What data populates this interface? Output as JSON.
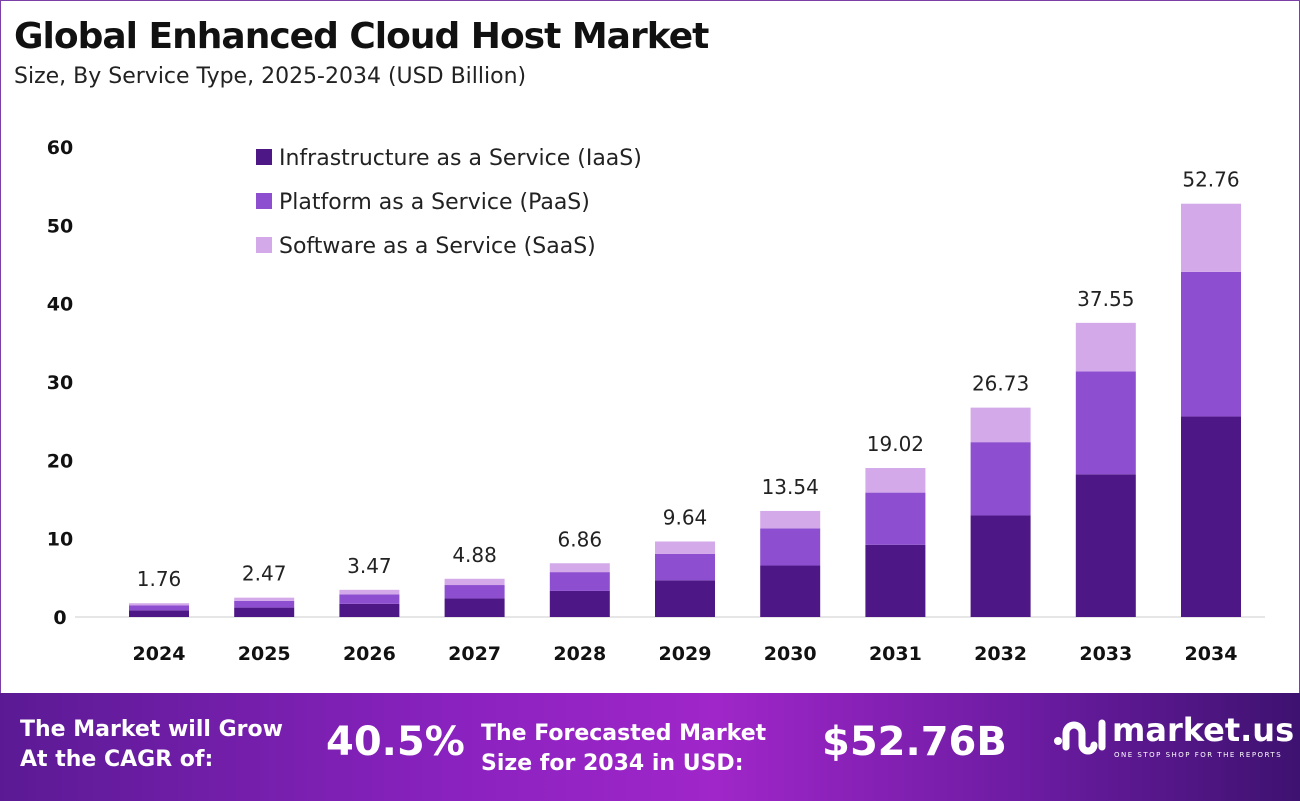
{
  "title": "Global Enhanced Cloud Host Market",
  "subtitle": "Size, By Service Type, 2025-2034 (USD Billion)",
  "chart_data": {
    "type": "stacked-bar",
    "categories": [
      "2024",
      "2025",
      "2026",
      "2027",
      "2028",
      "2029",
      "2030",
      "2031",
      "2032",
      "2033",
      "2034"
    ],
    "series": [
      {
        "name": "Infrastructure as a Service (IaaS)",
        "color": "#4e1786",
        "values": [
          0.85,
          1.2,
          1.68,
          2.37,
          3.33,
          4.68,
          6.57,
          9.22,
          12.96,
          18.21,
          25.59
        ]
      },
      {
        "name": "Platform as a Service (PaaS)",
        "color": "#8d4ecf",
        "values": [
          0.62,
          0.86,
          1.21,
          1.71,
          2.4,
          3.37,
          4.74,
          6.66,
          9.36,
          13.14,
          18.47
        ]
      },
      {
        "name": "Software as a Service (SaaS)",
        "color": "#d3a9ea",
        "values": [
          0.29,
          0.41,
          0.58,
          0.8,
          1.13,
          1.59,
          2.23,
          3.14,
          4.41,
          6.2,
          8.7
        ]
      }
    ],
    "totals": [
      "1.76",
      "2.47",
      "3.47",
      "4.88",
      "6.86",
      "9.64",
      "13.54",
      "19.02",
      "26.73",
      "37.55",
      "52.76"
    ],
    "yticks": [
      "0",
      "10",
      "20",
      "30",
      "40",
      "50",
      "60"
    ],
    "ylim": [
      0,
      60
    ],
    "grid": false,
    "legend": "top-left"
  },
  "footer": {
    "cagr_label": [
      "The Market will Grow",
      "At the CAGR of:"
    ],
    "cagr_value": "40.5%",
    "forecast_label": [
      "The Forecasted Market",
      "Size for 2034 in USD:"
    ],
    "forecast_value": "$52.76B",
    "logo_text": "market.us",
    "logo_tagline": "ONE STOP SHOP FOR THE REPORTS"
  }
}
